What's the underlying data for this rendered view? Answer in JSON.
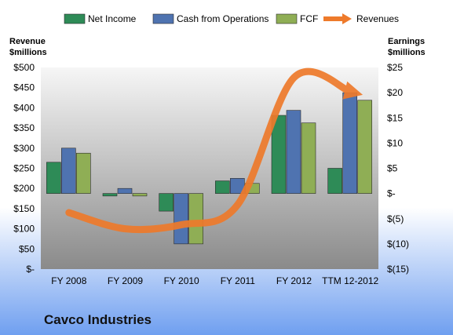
{
  "chart_data": {
    "type": "bar",
    "title": "Cavco Industries",
    "categories": [
      "FY 2008",
      "FY 2009",
      "FY 2010",
      "FY 2011",
      "FY 2012",
      "TTM 12-2012"
    ],
    "series": [
      {
        "name": "Net Income",
        "axis": "right",
        "color": "#2e8b57",
        "values": [
          6.2,
          -0.5,
          -3.5,
          2.5,
          15.5,
          5.0
        ]
      },
      {
        "name": "Cash from Operations",
        "axis": "right",
        "color": "#4f73b0",
        "values": [
          9.0,
          1.0,
          -10.0,
          3.0,
          16.5,
          20.0
        ]
      },
      {
        "name": "FCF",
        "axis": "right",
        "color": "#8fae55",
        "values": [
          8.0,
          -0.5,
          -10.0,
          2.0,
          14.0,
          18.5
        ]
      },
      {
        "name": "Revenues",
        "axis": "left",
        "type": "line",
        "color": "#ee7a2b",
        "values": [
          140,
          100,
          110,
          160,
          475,
          440
        ]
      }
    ],
    "left_axis": {
      "label_lines": [
        "Revenue",
        "$millions"
      ],
      "range": [
        0,
        500
      ],
      "ticks": [
        "$-",
        "$50",
        "$100",
        "$150",
        "$200",
        "$250",
        "$300",
        "$350",
        "$400",
        "$450",
        "$500"
      ]
    },
    "right_axis": {
      "label_lines": [
        "Earnings",
        "$millions"
      ],
      "range": [
        -15,
        25
      ],
      "ticks": [
        "$(15)",
        "$(10)",
        "$(5)",
        "$-",
        "$5",
        "$10",
        "$15",
        "$20",
        "$25"
      ]
    },
    "legend_position": "top",
    "grid": false
  },
  "colors": {
    "background_top": "#ffffff",
    "background_bottom": "#6f9ff0",
    "plot_top": "#f4f4f4",
    "plot_bottom": "#8c8c8c"
  }
}
